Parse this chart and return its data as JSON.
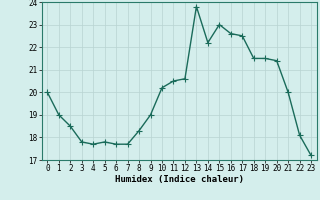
{
  "title": "",
  "xlabel": "Humidex (Indice chaleur)",
  "x": [
    0,
    1,
    2,
    3,
    4,
    5,
    6,
    7,
    8,
    9,
    10,
    11,
    12,
    13,
    14,
    15,
    16,
    17,
    18,
    19,
    20,
    21,
    22,
    23
  ],
  "y": [
    20.0,
    19.0,
    18.5,
    17.8,
    17.7,
    17.8,
    17.7,
    17.7,
    18.3,
    19.0,
    20.2,
    20.5,
    20.6,
    23.8,
    22.2,
    23.0,
    22.6,
    22.5,
    21.5,
    21.5,
    21.4,
    20.0,
    18.1,
    17.2
  ],
  "line_color": "#1a6b5a",
  "marker": "+",
  "markersize": 4,
  "linewidth": 1.0,
  "ylim": [
    17,
    24
  ],
  "yticks": [
    17,
    18,
    19,
    20,
    21,
    22,
    23,
    24
  ],
  "xticks": [
    0,
    1,
    2,
    3,
    4,
    5,
    6,
    7,
    8,
    9,
    10,
    11,
    12,
    13,
    14,
    15,
    16,
    17,
    18,
    19,
    20,
    21,
    22,
    23
  ],
  "bg_color": "#d4eeec",
  "grid_color": "#b8d4d2",
  "tick_fontsize": 5.5,
  "label_fontsize": 6.5
}
